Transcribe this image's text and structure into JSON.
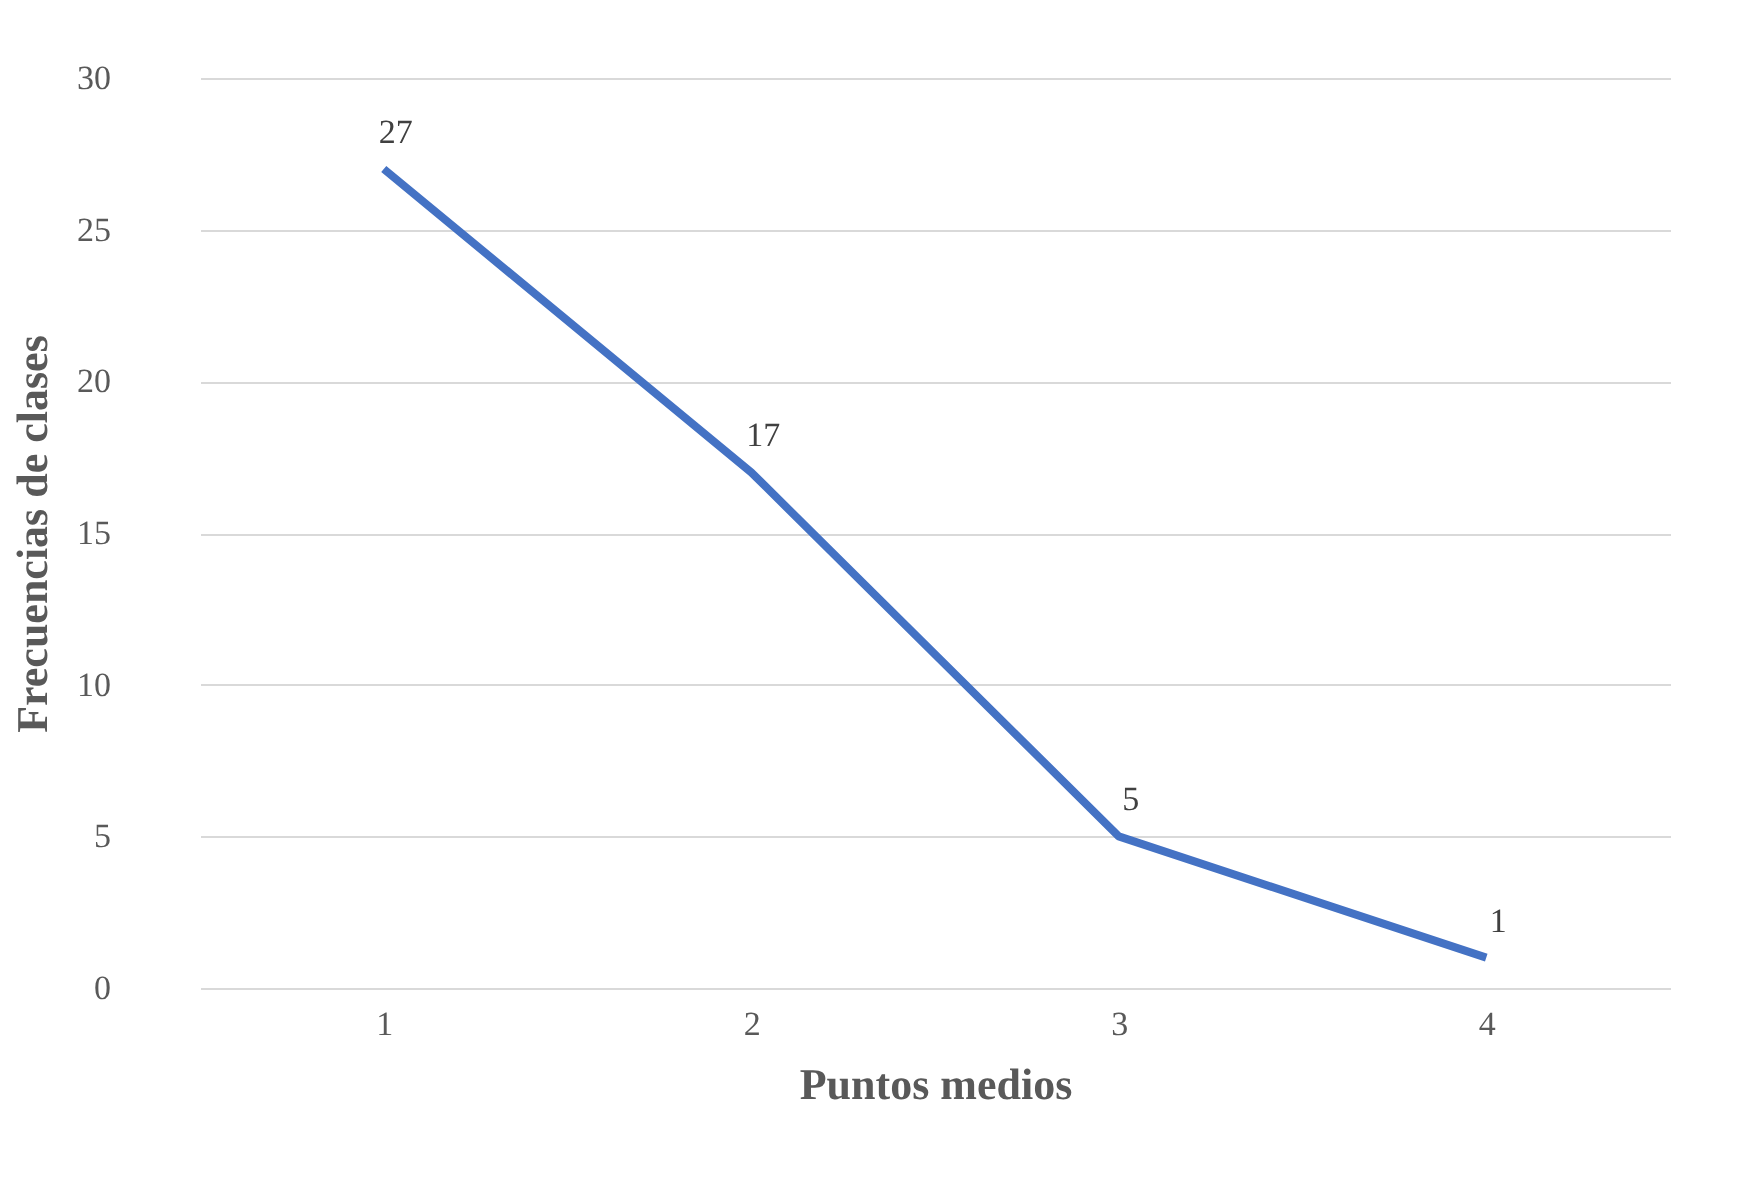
{
  "chart_data": {
    "type": "line",
    "xlabel": "Puntos medios",
    "ylabel": "Frecuencias de clases",
    "categories": [
      "1",
      "2",
      "3",
      "4"
    ],
    "series": [
      {
        "color": "#4472c4",
        "values": [
          27,
          17,
          5,
          1
        ]
      }
    ],
    "ylim": [
      0,
      30
    ],
    "yticks": [
      0,
      5,
      10,
      15,
      20,
      25,
      30
    ],
    "grid": "y",
    "data_labels": true,
    "marker": "none",
    "line_style": "solid"
  }
}
